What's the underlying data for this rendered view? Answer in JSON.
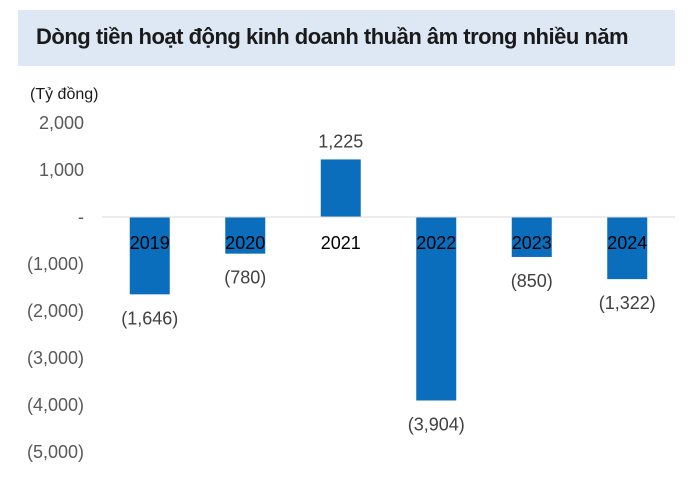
{
  "header": {
    "title": "Dòng tiền hoạt động kinh doanh thuần âm trong nhiều năm"
  },
  "chart_data": {
    "type": "bar",
    "title": "Dòng tiền hoạt động kinh doanh thuần âm trong nhiều năm",
    "ylabel": "(Tỷ đồng)",
    "xlabel": "",
    "categories": [
      "2019",
      "2020",
      "2021",
      "2022",
      "2023",
      "2024"
    ],
    "values": [
      -1646,
      -780,
      1225,
      -3904,
      -850,
      -1322
    ],
    "data_labels": [
      "(1,646)",
      "(780)",
      "1,225",
      "(3,904)",
      "(850)",
      "(1,322)"
    ],
    "ylim": [
      -5000,
      2000
    ],
    "yticks": [
      2000,
      1000,
      0,
      -1000,
      -2000,
      -3000,
      -4000,
      -5000
    ],
    "ytick_labels": [
      "2,000",
      "1,000",
      "-",
      "(1,000)",
      "(2,000)",
      "(3,000)",
      "(4,000)",
      "(5,000)"
    ],
    "bar_color": "#0a6ebd",
    "title_background": "#dde8f4",
    "grid": false,
    "legend": "none"
  }
}
